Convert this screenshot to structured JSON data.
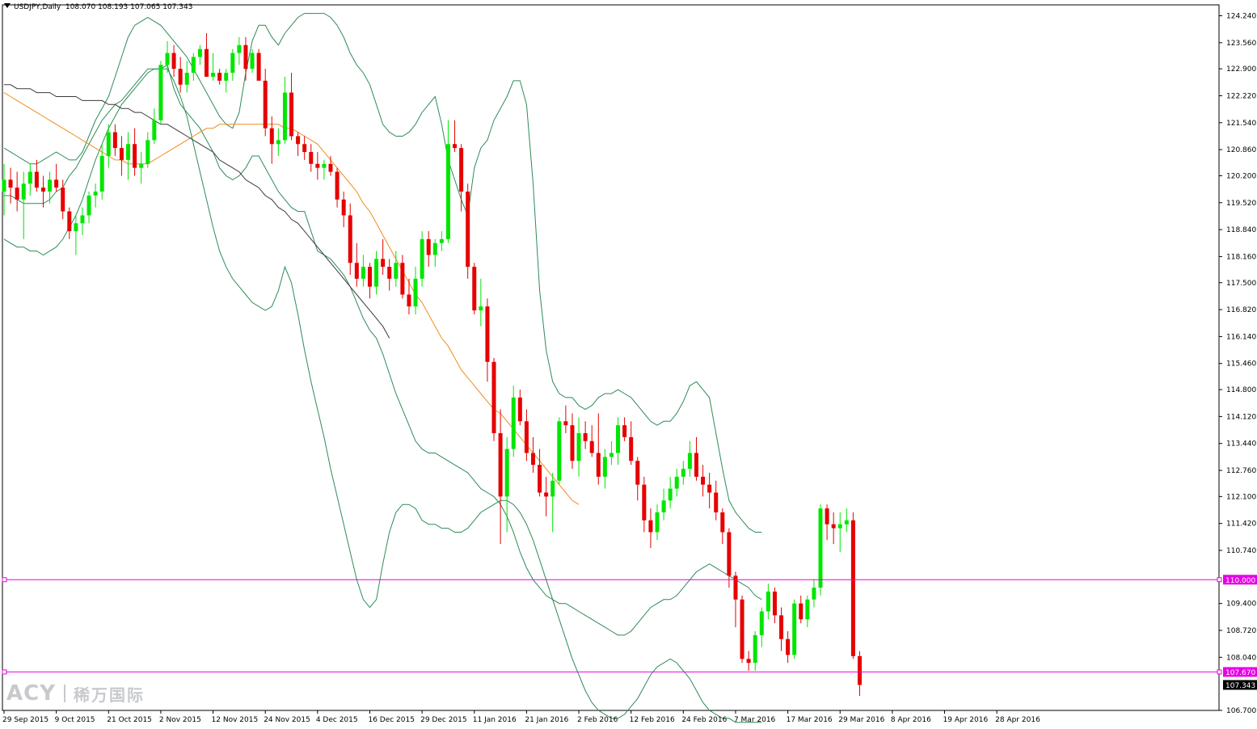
{
  "header": {
    "symbol": "USDJPY,Daily",
    "ohlc": "108.070 108.193 107.065 107.343"
  },
  "watermark": {
    "logo": "ACY",
    "chinese": "稀万国际"
  },
  "colors": {
    "bull": "#00e600",
    "bear": "#e60000",
    "bollinger": "#2e8b57",
    "ma_orange": "#f08c1e",
    "ma_dark": "#3a3a3a",
    "hline": "#e600e6",
    "axis": "#000000"
  },
  "chart_data": {
    "type": "candlestick",
    "symbol": "USDJPY",
    "timeframe": "Daily",
    "last": {
      "open": 108.07,
      "high": 108.193,
      "low": 107.065,
      "close": 107.343
    },
    "ylim": [
      106.7,
      124.4
    ],
    "y_ticks": [
      "124.240",
      "123.560",
      "122.900",
      "122.220",
      "121.540",
      "120.860",
      "120.200",
      "119.520",
      "118.840",
      "118.160",
      "117.500",
      "116.820",
      "116.140",
      "115.460",
      "114.800",
      "114.120",
      "113.440",
      "112.760",
      "112.100",
      "111.420",
      "110.740",
      "109.400",
      "108.720",
      "108.040",
      "106.700"
    ],
    "x_labels": [
      {
        "label": "29 Sep 2015",
        "bar": 0
      },
      {
        "label": "9 Oct 2015",
        "bar": 8
      },
      {
        "label": "21 Oct 2015",
        "bar": 16
      },
      {
        "label": "2 Nov 2015",
        "bar": 24
      },
      {
        "label": "12 Nov 2015",
        "bar": 32
      },
      {
        "label": "24 Nov 2015",
        "bar": 40
      },
      {
        "label": "4 Dec 2015",
        "bar": 48
      },
      {
        "label": "16 Dec 2015",
        "bar": 56
      },
      {
        "label": "29 Dec 2015",
        "bar": 64
      },
      {
        "label": "11 Jan 2016",
        "bar": 72
      },
      {
        "label": "21 Jan 2016",
        "bar": 80
      },
      {
        "label": "2 Feb 2016",
        "bar": 88
      },
      {
        "label": "12 Feb 2016",
        "bar": 96
      },
      {
        "label": "24 Feb 2016",
        "bar": 104
      },
      {
        "label": "7 Mar 2016",
        "bar": 112
      },
      {
        "label": "17 Mar 2016",
        "bar": 120
      },
      {
        "label": "29 Mar 2016",
        "bar": 128
      },
      {
        "label": "8 Apr 2016",
        "bar": 136
      },
      {
        "label": "19 Apr 2016",
        "bar": 144
      },
      {
        "label": "28 Apr 2016",
        "bar": 152
      }
    ],
    "horizontal_lines": [
      {
        "price": 110.0,
        "label": "110.000"
      },
      {
        "price": 107.67,
        "label": "107.670"
      }
    ],
    "current_price_label": "107.343",
    "candles_ohlc": [
      [
        119.8,
        120.5,
        119.2,
        120.1
      ],
      [
        120.1,
        120.4,
        119.5,
        119.9
      ],
      [
        119.9,
        120.3,
        119.3,
        119.6
      ],
      [
        119.6,
        120.3,
        118.6,
        120.0
      ],
      [
        120.0,
        120.5,
        119.7,
        120.3
      ],
      [
        120.3,
        120.6,
        119.8,
        119.9
      ],
      [
        119.9,
        120.2,
        119.4,
        119.8
      ],
      [
        119.8,
        120.3,
        119.5,
        120.1
      ],
      [
        120.1,
        120.5,
        119.8,
        119.9
      ],
      [
        119.9,
        120.1,
        119.1,
        119.3
      ],
      [
        119.3,
        119.4,
        118.6,
        118.8
      ],
      [
        118.8,
        119.2,
        118.2,
        119.0
      ],
      [
        119.0,
        119.4,
        118.7,
        119.2
      ],
      [
        119.2,
        119.8,
        119.0,
        119.7
      ],
      [
        119.7,
        120.0,
        119.4,
        119.8
      ],
      [
        119.8,
        121.0,
        119.6,
        120.7
      ],
      [
        120.7,
        121.5,
        120.4,
        121.3
      ],
      [
        121.3,
        121.5,
        120.7,
        120.9
      ],
      [
        120.9,
        121.2,
        120.2,
        120.6
      ],
      [
        120.6,
        121.3,
        120.1,
        121.0
      ],
      [
        121.0,
        121.4,
        120.2,
        120.4
      ],
      [
        120.4,
        120.8,
        120.0,
        120.5
      ],
      [
        120.5,
        121.3,
        120.4,
        121.1
      ],
      [
        121.1,
        121.9,
        121.0,
        121.6
      ],
      [
        121.6,
        123.1,
        121.5,
        123.0
      ],
      [
        123.0,
        123.6,
        122.8,
        123.3
      ],
      [
        123.3,
        123.5,
        122.7,
        122.9
      ],
      [
        122.9,
        123.2,
        122.3,
        122.5
      ],
      [
        122.5,
        123.1,
        122.3,
        122.8
      ],
      [
        122.8,
        123.3,
        122.6,
        123.2
      ],
      [
        123.2,
        123.5,
        123.0,
        123.4
      ],
      [
        123.4,
        123.8,
        123.1,
        122.7
      ],
      [
        122.7,
        123.3,
        122.6,
        122.8
      ],
      [
        122.8,
        122.9,
        122.5,
        122.6
      ],
      [
        122.6,
        122.9,
        122.3,
        122.8
      ],
      [
        122.8,
        123.4,
        122.6,
        123.3
      ],
      [
        123.3,
        123.7,
        123.0,
        123.5
      ],
      [
        123.5,
        123.7,
        122.6,
        122.9
      ],
      [
        122.9,
        123.4,
        122.8,
        123.3
      ],
      [
        123.3,
        123.4,
        122.8,
        122.6
      ],
      [
        122.6,
        122.9,
        121.2,
        121.4
      ],
      [
        121.4,
        121.7,
        120.5,
        121.0
      ],
      [
        121.0,
        121.4,
        120.7,
        121.1
      ],
      [
        121.1,
        122.7,
        121.0,
        122.3
      ],
      [
        122.3,
        122.8,
        121.1,
        121.2
      ],
      [
        121.2,
        121.3,
        120.7,
        121.0
      ],
      [
        121.0,
        121.2,
        120.6,
        120.8
      ],
      [
        120.8,
        121.0,
        120.3,
        120.5
      ],
      [
        120.5,
        120.8,
        120.1,
        120.4
      ],
      [
        120.4,
        120.6,
        120.1,
        120.5
      ],
      [
        120.5,
        120.7,
        120.2,
        120.3
      ],
      [
        120.3,
        120.4,
        119.4,
        119.6
      ],
      [
        119.6,
        119.8,
        118.9,
        119.2
      ],
      [
        119.2,
        119.5,
        117.7,
        118.0
      ],
      [
        118.0,
        118.5,
        117.4,
        117.6
      ],
      [
        117.6,
        118.2,
        117.4,
        117.9
      ],
      [
        117.9,
        118.0,
        117.1,
        117.4
      ],
      [
        117.4,
        118.3,
        117.2,
        118.1
      ],
      [
        118.1,
        118.6,
        117.7,
        117.9
      ],
      [
        117.9,
        118.1,
        117.3,
        117.6
      ],
      [
        117.6,
        118.3,
        117.4,
        118.0
      ],
      [
        118.0,
        118.2,
        117.1,
        117.2
      ],
      [
        117.2,
        117.6,
        116.7,
        116.9
      ],
      [
        116.9,
        117.9,
        116.7,
        117.6
      ],
      [
        117.6,
        118.8,
        117.4,
        118.6
      ],
      [
        118.6,
        118.8,
        117.9,
        118.2
      ],
      [
        118.2,
        118.6,
        117.9,
        118.5
      ],
      [
        118.5,
        118.8,
        118.3,
        118.6
      ],
      [
        118.6,
        121.6,
        118.5,
        121.0
      ],
      [
        121.0,
        121.6,
        120.8,
        120.9
      ],
      [
        120.9,
        121.0,
        119.3,
        119.8
      ],
      [
        119.8,
        120.0,
        117.6,
        117.9
      ],
      [
        117.9,
        118.0,
        116.7,
        116.8
      ],
      [
        116.8,
        117.6,
        116.4,
        116.9
      ],
      [
        116.9,
        117.1,
        115.0,
        115.5
      ],
      [
        115.5,
        115.6,
        113.5,
        113.7
      ],
      [
        113.7,
        114.3,
        110.9,
        112.1
      ],
      [
        112.1,
        113.6,
        111.2,
        113.3
      ],
      [
        113.3,
        114.9,
        113.1,
        114.6
      ],
      [
        114.6,
        114.8,
        113.9,
        114.0
      ],
      [
        114.0,
        114.3,
        113.0,
        113.2
      ],
      [
        113.2,
        113.6,
        112.7,
        112.9
      ],
      [
        112.9,
        113.3,
        112.1,
        112.2
      ],
      [
        112.2,
        112.6,
        111.6,
        112.1
      ],
      [
        112.1,
        112.7,
        111.2,
        112.5
      ],
      [
        112.5,
        114.1,
        112.4,
        114.0
      ],
      [
        114.0,
        114.4,
        113.7,
        113.9
      ],
      [
        113.9,
        114.2,
        112.8,
        113.0
      ],
      [
        113.0,
        114.1,
        112.6,
        113.7
      ],
      [
        113.7,
        114.0,
        113.3,
        113.5
      ],
      [
        113.5,
        113.9,
        113.1,
        113.2
      ],
      [
        113.2,
        114.2,
        112.4,
        112.6
      ],
      [
        112.6,
        113.3,
        112.3,
        113.1
      ],
      [
        113.1,
        113.5,
        112.9,
        113.2
      ],
      [
        113.2,
        114.1,
        112.9,
        113.9
      ],
      [
        113.9,
        114.1,
        113.5,
        113.6
      ],
      [
        113.6,
        114.0,
        112.9,
        113.0
      ],
      [
        113.0,
        113.1,
        112.0,
        112.4
      ],
      [
        112.4,
        112.6,
        111.2,
        111.5
      ],
      [
        111.5,
        111.8,
        110.8,
        111.2
      ],
      [
        111.2,
        111.9,
        111.0,
        111.7
      ],
      [
        111.7,
        112.3,
        111.5,
        112.0
      ],
      [
        112.0,
        112.6,
        111.8,
        112.3
      ],
      [
        112.3,
        112.8,
        112.1,
        112.6
      ],
      [
        112.6,
        113.0,
        112.4,
        112.8
      ],
      [
        112.8,
        113.5,
        112.6,
        113.2
      ],
      [
        113.2,
        113.6,
        112.5,
        112.6
      ],
      [
        112.6,
        112.9,
        112.1,
        112.4
      ],
      [
        112.4,
        112.7,
        111.8,
        112.2
      ],
      [
        112.2,
        112.5,
        111.5,
        111.7
      ],
      [
        111.7,
        111.8,
        110.9,
        111.2
      ],
      [
        111.2,
        111.3,
        109.8,
        110.1
      ],
      [
        110.1,
        110.2,
        108.8,
        109.5
      ],
      [
        109.5,
        109.6,
        107.9,
        108.0
      ],
      [
        108.0,
        108.2,
        107.7,
        107.9
      ],
      [
        107.9,
        108.7,
        107.7,
        108.6
      ],
      [
        108.6,
        109.3,
        108.3,
        109.2
      ],
      [
        109.2,
        109.9,
        109.0,
        109.7
      ],
      [
        109.7,
        109.8,
        108.9,
        109.1
      ],
      [
        109.1,
        109.3,
        108.2,
        108.5
      ],
      [
        108.5,
        108.7,
        107.9,
        108.1
      ],
      [
        108.1,
        109.5,
        108.0,
        109.4
      ],
      [
        109.4,
        109.6,
        108.9,
        109.0
      ],
      [
        109.0,
        109.6,
        108.8,
        109.5
      ],
      [
        109.5,
        110.0,
        109.3,
        109.8
      ],
      [
        109.8,
        111.9,
        109.6,
        111.8
      ],
      [
        111.8,
        111.9,
        111.0,
        111.4
      ],
      [
        111.4,
        111.7,
        110.9,
        111.3
      ],
      [
        111.3,
        111.7,
        110.7,
        111.4
      ],
      [
        111.4,
        111.8,
        111.2,
        111.5
      ],
      [
        111.5,
        111.7,
        108.0,
        108.07
      ],
      [
        108.07,
        108.193,
        107.065,
        107.343
      ]
    ],
    "bollinger_upper": [
      120.9,
      120.8,
      120.7,
      120.6,
      120.5,
      120.5,
      120.6,
      120.7,
      120.8,
      120.7,
      120.6,
      120.6,
      120.8,
      121.2,
      121.6,
      121.9,
      122.2,
      122.7,
      123.2,
      123.7,
      124.0,
      124.1,
      124.2,
      124.1,
      124.0,
      123.8,
      123.6,
      123.4,
      123.2,
      122.9,
      122.6,
      122.3,
      122.0,
      121.7,
      121.5,
      121.4,
      121.8,
      122.8,
      123.6,
      124.0,
      124.0,
      123.7,
      123.5,
      123.8,
      124.0,
      124.2,
      124.3,
      124.3,
      124.3,
      124.3,
      124.2,
      124.0,
      123.7,
      123.3,
      123.0,
      122.8,
      122.5,
      122.0,
      121.5,
      121.3,
      121.2,
      121.2,
      121.3,
      121.5,
      121.8,
      122.0,
      122.2,
      121.5,
      120.6,
      120.1,
      119.6,
      119.2,
      120.4,
      120.9,
      121.1,
      121.6,
      121.9,
      122.2,
      122.6,
      122.6,
      122.0,
      120.0,
      117.3,
      115.8,
      115.0,
      114.7,
      114.6,
      114.6,
      114.4,
      114.3,
      114.4,
      114.6,
      114.7,
      114.7,
      114.8,
      114.7,
      114.6,
      114.4,
      114.2,
      114.0,
      113.9,
      114.0,
      114.0,
      114.2,
      114.5,
      114.9,
      115.0,
      114.8,
      114.6,
      113.7,
      112.8,
      112.0,
      111.7,
      111.5,
      111.3,
      111.2,
      111.2
    ],
    "bollinger_mid": [
      119.7,
      119.7,
      119.6,
      119.5,
      119.5,
      119.5,
      119.5,
      119.6,
      119.8,
      119.9,
      120.2,
      120.4,
      120.7,
      121.0,
      121.3,
      121.6,
      121.8,
      122.0,
      122.1,
      122.3,
      122.5,
      122.7,
      122.9,
      122.9,
      122.9,
      123.0,
      122.4,
      122.0,
      121.8,
      121.6,
      121.4,
      121.1,
      120.8,
      120.4,
      120.2,
      120.1,
      120.2,
      120.4,
      120.7,
      120.7,
      120.4,
      120.1,
      119.8,
      119.6,
      119.4,
      119.3,
      119.3,
      118.8,
      118.3,
      118.2,
      118.1,
      117.9,
      117.7,
      117.4,
      117.0,
      116.6,
      116.3,
      116.1,
      115.7,
      115.2,
      114.7,
      114.3,
      113.9,
      113.5,
      113.3,
      113.2,
      113.2,
      113.1,
      113.0,
      112.9,
      112.8,
      112.7,
      112.5,
      112.3,
      112.2,
      112.1,
      111.9,
      111.6,
      111.2,
      110.7,
      110.3,
      110.0,
      109.8,
      109.6,
      109.5,
      109.4,
      109.4,
      109.3,
      109.2,
      109.1,
      109.0,
      108.9,
      108.8,
      108.7,
      108.6,
      108.6,
      108.7,
      108.9,
      109.1,
      109.3,
      109.4,
      109.5,
      109.5,
      109.6,
      109.8,
      110.0,
      110.2,
      110.3,
      110.4,
      110.3,
      110.2,
      110.1,
      110.0,
      109.9,
      109.8,
      109.6,
      109.5
    ],
    "bollinger_lower": [
      118.6,
      118.5,
      118.4,
      118.4,
      118.3,
      118.3,
      118.2,
      118.3,
      118.4,
      118.6,
      118.9,
      119.2,
      119.6,
      120.1,
      120.6,
      121.0,
      121.4,
      121.7,
      122.0,
      122.2,
      122.4,
      122.6,
      122.8,
      122.9,
      122.9,
      122.9,
      122.6,
      122.2,
      121.7,
      121.0,
      120.3,
      119.6,
      118.9,
      118.3,
      117.9,
      117.6,
      117.4,
      117.2,
      117.0,
      116.9,
      116.8,
      116.9,
      117.3,
      117.9,
      117.5,
      116.7,
      115.8,
      115.0,
      114.3,
      113.6,
      112.8,
      112.1,
      111.4,
      110.7,
      110.0,
      109.5,
      109.3,
      109.5,
      110.4,
      111.2,
      111.7,
      111.9,
      111.9,
      111.8,
      111.5,
      111.4,
      111.4,
      111.3,
      111.3,
      111.2,
      111.2,
      111.3,
      111.5,
      111.7,
      111.8,
      111.9,
      112.0,
      112.0,
      111.9,
      111.7,
      111.4,
      111.0,
      110.5,
      110.0,
      109.5,
      109.0,
      108.5,
      108.0,
      107.6,
      107.2,
      106.9,
      106.7,
      106.6,
      106.5,
      106.5,
      106.6,
      106.8,
      107.0,
      107.3,
      107.6,
      107.8,
      107.9,
      108.0,
      107.9,
      107.7,
      107.5,
      107.2,
      106.9,
      106.7,
      106.6,
      106.5,
      106.5,
      106.4,
      106.4,
      106.4,
      106.4,
      106.4
    ],
    "ma_orange": [
      122.3,
      122.2,
      122.1,
      122.0,
      121.9,
      121.8,
      121.7,
      121.6,
      121.5,
      121.4,
      121.3,
      121.2,
      121.1,
      121.0,
      120.9,
      120.8,
      120.7,
      120.6,
      120.6,
      120.5,
      120.5,
      120.5,
      120.5,
      120.6,
      120.7,
      120.8,
      120.9,
      121.0,
      121.1,
      121.2,
      121.3,
      121.4,
      121.4,
      121.5,
      121.5,
      121.5,
      121.5,
      121.5,
      121.5,
      121.5,
      121.5,
      121.5,
      121.5,
      121.4,
      121.4,
      121.3,
      121.2,
      121.1,
      121.0,
      120.8,
      120.6,
      120.4,
      120.2,
      120.0,
      119.8,
      119.5,
      119.3,
      119.0,
      118.7,
      118.4,
      118.1,
      117.8,
      117.5,
      117.2,
      117.0,
      116.7,
      116.4,
      116.1,
      115.9,
      115.6,
      115.3,
      115.1,
      114.9,
      114.7,
      114.5,
      114.3,
      114.2,
      114.0,
      113.8,
      113.6,
      113.4,
      113.2,
      113.0,
      112.8,
      112.6,
      112.4,
      112.2,
      112.0,
      111.9
    ],
    "ma_dark": [
      122.5,
      122.5,
      122.4,
      122.4,
      122.4,
      122.3,
      122.3,
      122.3,
      122.2,
      122.2,
      122.2,
      122.2,
      122.1,
      122.1,
      122.1,
      122.1,
      122.0,
      122.0,
      121.9,
      121.9,
      121.8,
      121.8,
      121.7,
      121.6,
      121.5,
      121.5,
      121.4,
      121.3,
      121.2,
      121.1,
      121.0,
      120.9,
      120.8,
      120.6,
      120.5,
      120.4,
      120.3,
      120.1,
      120.0,
      119.9,
      119.7,
      119.6,
      119.4,
      119.3,
      119.1,
      119.0,
      118.8,
      118.6,
      118.4,
      118.2,
      118.0,
      117.8,
      117.6,
      117.4,
      117.2,
      117.0,
      116.8,
      116.6,
      116.4,
      116.1
    ]
  }
}
